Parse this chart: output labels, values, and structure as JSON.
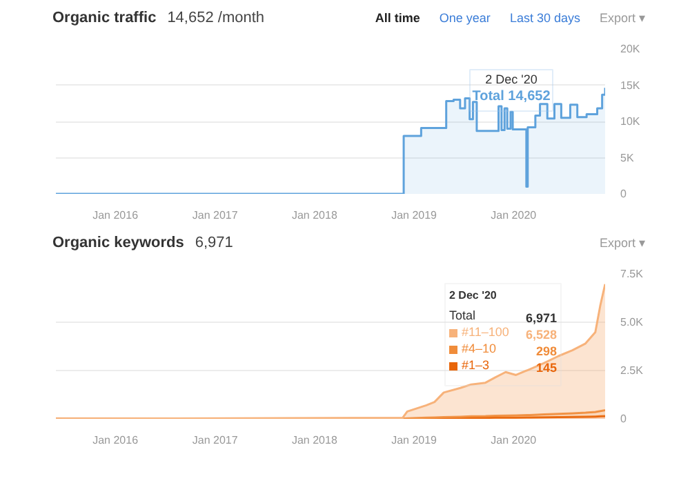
{
  "chart_data": [
    {
      "type": "step",
      "title": "Organic traffic",
      "subtitle": "14,652 /month",
      "annotations": [
        "All time",
        "One year",
        "Last 30 days",
        "Export ▾",
        "2 Dec '20",
        "Total 14,652"
      ],
      "x": [
        "2015-05-28",
        "2018-11-24",
        "2019-01-27",
        "2019-04-29",
        "2019-05-26",
        "2019-06-19",
        "2019-07-07",
        "2019-07-24",
        "2019-08-05",
        "2019-08-19",
        "2019-11-07",
        "2019-11-18",
        "2019-11-29",
        "2019-12-09",
        "2019-12-21",
        "2019-12-29",
        "2020-02-17",
        "2020-02-22",
        "2020-03-21",
        "2020-04-07",
        "2020-05-04",
        "2020-05-30",
        "2020-06-24",
        "2020-07-27",
        "2020-08-22",
        "2020-09-25",
        "2020-11-03",
        "2020-11-21",
        "2020-12-02"
      ],
      "series": [
        {
          "color": "#5ea2dc",
          "values": [
            0,
            8000,
            9100,
            12800,
            13000,
            11800,
            13200,
            10300,
            12700,
            8700,
            12100,
            8800,
            11800,
            9000,
            11300,
            8900,
            1000,
            9200,
            10800,
            12400,
            10400,
            12400,
            10500,
            12300,
            10600,
            11000,
            11800,
            13700,
            14652
          ]
        }
      ],
      "xlim": [
        "2015-05-28",
        "2020-12-02"
      ],
      "xticks": [
        {
          "value": "2016-01-01",
          "label": "Jan 2016"
        },
        {
          "value": "2017-01-01",
          "label": "Jan 2017"
        },
        {
          "value": "2018-01-01",
          "label": "Jan 2018"
        },
        {
          "value": "2019-01-01",
          "label": "Jan 2019"
        },
        {
          "value": "2020-01-01",
          "label": "Jan 2020"
        }
      ],
      "ylim": [
        0,
        20000
      ],
      "yticks": [
        0,
        {
          "value": 5000,
          "label": "5K"
        },
        {
          "value": 10000,
          "label": "10K"
        },
        {
          "value": 15000,
          "label": "15K"
        },
        {
          "value": 20000,
          "label": "20K"
        }
      ],
      "grid": "y"
    },
    {
      "type": "area",
      "stacked": true,
      "title": "Organic keywords",
      "subtitle": "6,971",
      "annotations": [
        "Export ▾",
        "2 Dec '20",
        "Total",
        "6,971",
        "6,528",
        "298",
        "145"
      ],
      "legend": "right",
      "x": [
        "2015-05-28",
        "2018-11-20",
        "2018-12-07",
        "2019-02-15",
        "2019-03-17",
        "2019-04-20",
        "2019-06-20",
        "2019-07-30",
        "2019-09-20",
        "2019-10-25",
        "2019-12-03",
        "2020-01-10",
        "2020-03-01",
        "2020-04-22",
        "2020-06-14",
        "2020-08-04",
        "2020-09-21",
        "2020-10-27",
        "2020-11-14",
        "2020-12-02"
      ],
      "series": [
        {
          "name": "#1–3",
          "color": "#e8650a",
          "values": [
            0,
            0,
            10,
            20,
            20,
            30,
            40,
            50,
            50,
            60,
            60,
            60,
            70,
            80,
            90,
            100,
            110,
            120,
            130,
            145
          ]
        },
        {
          "name": "#4–10",
          "color": "#f08c3a",
          "values": [
            0,
            10,
            20,
            40,
            50,
            60,
            70,
            80,
            90,
            100,
            110,
            120,
            130,
            150,
            170,
            190,
            210,
            240,
            270,
            298
          ]
        },
        {
          "name": "#11–100",
          "color": "#f7b27a",
          "values": [
            0,
            40,
            350,
            640,
            800,
            1270,
            1490,
            1650,
            1730,
            1980,
            2250,
            2090,
            2370,
            2660,
            2990,
            3260,
            3580,
            4120,
            5450,
            6528
          ]
        }
      ],
      "xlim": [
        "2015-05-28",
        "2020-12-02"
      ],
      "xticks": [
        {
          "value": "2016-01-01",
          "label": "Jan 2016"
        },
        {
          "value": "2017-01-01",
          "label": "Jan 2017"
        },
        {
          "value": "2018-01-01",
          "label": "Jan 2018"
        },
        {
          "value": "2019-01-01",
          "label": "Jan 2019"
        },
        {
          "value": "2020-01-01",
          "label": "Jan 2020"
        }
      ],
      "ylim": [
        0,
        7500
      ],
      "yticks": [
        0,
        {
          "value": 2500,
          "label": "2.5K"
        },
        {
          "value": 5000,
          "label": "5.0K"
        },
        {
          "value": 7500,
          "label": "7.5K"
        }
      ],
      "grid": "y"
    }
  ]
}
